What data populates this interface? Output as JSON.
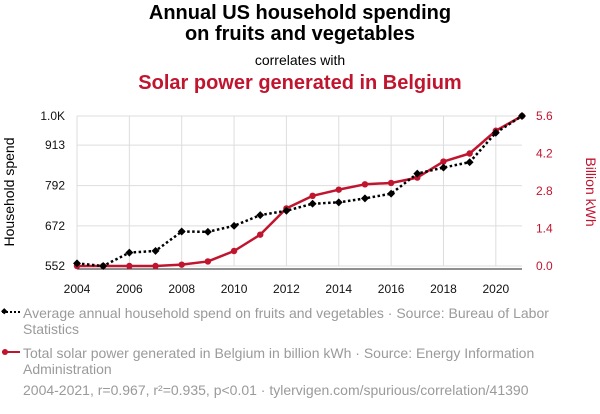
{
  "header": {
    "title_line1": "Annual US household spending",
    "title_line2": "on fruits and vegetables",
    "connector": "correlates with",
    "title2": "Solar power generated in Belgium"
  },
  "colors": {
    "series1": "#000000",
    "series2": "#c0152f",
    "grid": "#dddddd",
    "muted": "#9a9a9a"
  },
  "legend": {
    "item1": "Average annual household spend on fruits and vegetables · Source: Bureau of Labor Statistics",
    "item2": "Total solar power generated in Belgium in billion kWh · Source: Energy Information Administration"
  },
  "footer": "2004-2021, r=0.967, r²=0.935, p<0.01 · tylervigen.com/spurious/correlation/41390",
  "chart_data": {
    "type": "line",
    "x": [
      2004,
      2005,
      2006,
      2007,
      2008,
      2009,
      2010,
      2011,
      2012,
      2013,
      2014,
      2015,
      2016,
      2017,
      2018,
      2019,
      2020,
      2021
    ],
    "xlim": [
      2004,
      2021
    ],
    "xticks": [
      "2004",
      "2006",
      "2008",
      "2010",
      "2012",
      "2014",
      "2016",
      "2018",
      "2020"
    ],
    "ylabel": "Household spend",
    "ylabel_right": "Billion kWh",
    "left_axis": {
      "ylim": [
        552,
        1000
      ],
      "ticks": [
        "552",
        "672",
        "792",
        "913",
        "1.0K"
      ],
      "tick_values": [
        552,
        672,
        792,
        913,
        1000
      ]
    },
    "right_axis": {
      "ylim": [
        0,
        5.6
      ],
      "ticks": [
        "0.0",
        "1.4",
        "2.8",
        "4.2",
        "5.6"
      ],
      "tick_values": [
        0,
        1.4,
        2.8,
        4.2,
        5.6
      ]
    },
    "grid": true,
    "series": [
      {
        "name": "Average annual household spend on fruits and vegetables",
        "axis": "left",
        "style": "dotted-diamond",
        "values": [
          560,
          552,
          592,
          597,
          655,
          654,
          672,
          704,
          717,
          738,
          742,
          754,
          768,
          828,
          846,
          862,
          950,
          1000
        ]
      },
      {
        "name": "Total solar power generated in Belgium in billion kWh",
        "axis": "right",
        "style": "solid-circle",
        "values": [
          0.0,
          0.0,
          0.0,
          0.0,
          0.05,
          0.17,
          0.56,
          1.17,
          2.15,
          2.62,
          2.85,
          3.05,
          3.1,
          3.3,
          3.9,
          4.2,
          5.05,
          5.6
        ]
      }
    ]
  }
}
